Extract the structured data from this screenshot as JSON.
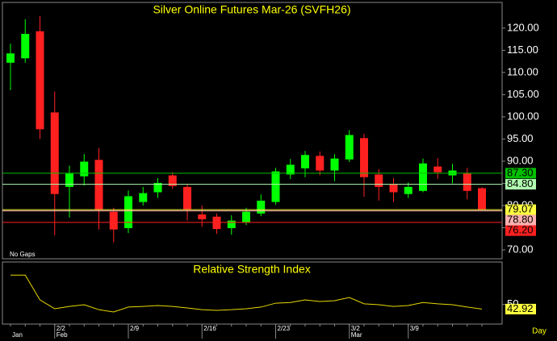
{
  "chart_data": [
    {
      "type": "candlestick",
      "title": "Silver Online Futures Mar-26 (SVFH26)",
      "note": "No Gaps",
      "categories": [
        null,
        null,
        null,
        "2/2",
        null,
        null,
        null,
        null,
        "2/9",
        null,
        null,
        null,
        null,
        "2/16",
        null,
        null,
        null,
        null,
        "2/23",
        null,
        null,
        null,
        null,
        "3/2",
        null,
        null,
        null,
        "3/9",
        null,
        null,
        null,
        null,
        null
      ],
      "months": [
        "Jan",
        null,
        null,
        "Feb",
        null,
        null,
        null,
        null,
        null,
        null,
        null,
        null,
        null,
        null,
        null,
        null,
        null,
        null,
        null,
        null,
        null,
        null,
        null,
        "Mar",
        null,
        null,
        null,
        null,
        null,
        null,
        null,
        null,
        null
      ],
      "open": [
        112.2,
        113.2,
        119.3,
        101,
        84.2,
        86.6,
        90.3,
        78.6,
        74.9,
        80.8,
        83,
        86.8,
        84.2,
        78,
        77.5,
        74.9,
        76.2,
        78.2,
        80.8,
        87,
        88.4,
        91.2,
        87.9,
        90.4,
        95.2,
        87,
        84.8,
        82.6,
        83.3,
        88.8,
        86.8,
        87.3,
        83.9
      ],
      "high": [
        116.5,
        122,
        122.7,
        105.7,
        89,
        91.6,
        93,
        79.5,
        83.4,
        84.2,
        86.2,
        87.5,
        84.8,
        80,
        78.2,
        77.8,
        79.5,
        82.5,
        88.5,
        90.5,
        92.3,
        92.2,
        91.6,
        97,
        96.2,
        88.2,
        86.2,
        85.2,
        90.6,
        90.7,
        89.4,
        88.5,
        84.2
      ],
      "low": [
        106,
        112.2,
        95,
        73.3,
        77.3,
        84.5,
        74.6,
        71.7,
        73.8,
        80,
        81.7,
        83.8,
        76.6,
        75.2,
        73.6,
        73.4,
        75.6,
        77.6,
        80.2,
        86,
        86.4,
        86.8,
        85.5,
        89.8,
        82,
        81.1,
        80.8,
        81.7,
        83,
        86,
        85,
        81.4,
        79
      ],
      "close": [
        114.3,
        118.7,
        97.2,
        82.6,
        87.2,
        89.9,
        79,
        74.6,
        82.1,
        82.8,
        85.1,
        84.4,
        79.1,
        76.9,
        74.7,
        76.6,
        78.6,
        81.1,
        87.7,
        89.2,
        91.4,
        87.9,
        90.6,
        95.9,
        86.4,
        84.2,
        83,
        84.2,
        89.5,
        87.5,
        87.9,
        83.3,
        79.07
      ],
      "up_color": "#00ff00",
      "down_color": "#ff2020",
      "ylim": [
        68,
        125.8
      ],
      "yticks": [
        {
          "value": 70,
          "label": "70.00"
        },
        {
          "value": 75,
          "label": "75.00"
        },
        {
          "value": 80,
          "label": "80.00"
        },
        {
          "value": 85,
          "label": "85.00"
        },
        {
          "value": 90,
          "label": "90.00"
        },
        {
          "value": 95,
          "label": "95.00"
        },
        {
          "value": 100,
          "label": "100.00"
        },
        {
          "value": 105,
          "label": "105.00"
        },
        {
          "value": 110,
          "label": "110.00"
        },
        {
          "value": 115,
          "label": "115.00"
        },
        {
          "value": 120,
          "label": "120.00"
        }
      ],
      "levels": [
        {
          "value": 87.3,
          "label": "87.30",
          "color": "#00c000"
        },
        {
          "value": 84.8,
          "label": "84.80",
          "color": "#b0ffb0"
        },
        {
          "value": 79.07,
          "label": "79.07",
          "color": "#ffff40"
        },
        {
          "value": 78.8,
          "label": "78.80",
          "color": "#ffb0b0"
        },
        {
          "value": 76.2,
          "label": "76.20",
          "color": "#ff2020"
        }
      ]
    },
    {
      "type": "line",
      "title": "Relative Strength Index",
      "interval": "Day",
      "color": "#e8d800",
      "values": [
        95,
        95,
        57,
        43.5,
        47,
        49.6,
        42,
        38.5,
        46,
        47,
        48.4,
        47,
        44.7,
        42,
        41,
        42,
        43.5,
        46,
        52,
        53,
        57,
        54.6,
        55.8,
        60.7,
        51,
        49.6,
        47,
        48.4,
        53,
        51,
        49.6,
        46,
        42.92
      ],
      "ylim": [
        20,
        115
      ],
      "yticks": [
        50
      ]
    }
  ]
}
